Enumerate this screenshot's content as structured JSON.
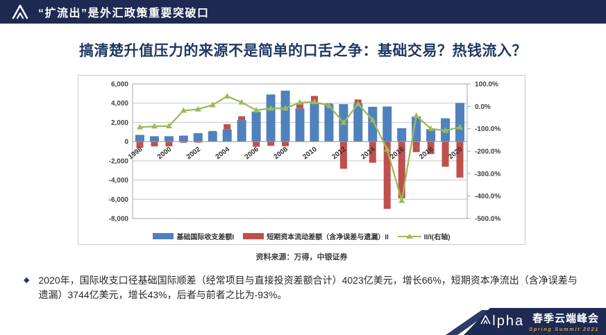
{
  "header": {
    "title": "“扩流出”是外汇政策重要突破口"
  },
  "slide": {
    "title": "搞清楚升值压力的来源不是简单的口舌之争：基础交易？热钱流入？"
  },
  "chart_data": {
    "type": "bar",
    "subtype": "stacked-bars-with-line-on-secondary-axis",
    "categories": [
      1998,
      1999,
      2000,
      2001,
      2002,
      2003,
      2004,
      2005,
      2006,
      2007,
      2008,
      2009,
      2010,
      2011,
      2012,
      2013,
      2014,
      2015,
      2016,
      2017,
      2018,
      2019,
      2020
    ],
    "series": [
      {
        "name": "基础国际收支差额I",
        "type": "bar",
        "color": "#4f81bd",
        "values": [
          700,
          560,
          560,
          620,
          880,
          1050,
          1250,
          2240,
          3130,
          4900,
          5300,
          3450,
          3950,
          3870,
          3900,
          3950,
          3620,
          3650,
          1400,
          2600,
          1300,
          2423,
          4023
        ]
      },
      {
        "name": "短期资本流动差额（含净误差与遗漏）II",
        "type": "bar",
        "color": "#c0504d",
        "values": [
          -650,
          -500,
          -490,
          -120,
          -110,
          60,
          560,
          400,
          -535,
          -440,
          -480,
          600,
          800,
          100,
          -2830,
          430,
          -2200,
          -7000,
          -5900,
          -1100,
          -1300,
          -2618,
          -3744
        ]
      },
      {
        "name": "II/I(右轴)",
        "type": "line",
        "axis": "right",
        "color": "#9bbb59",
        "marker": "triangle",
        "values": [
          -93,
          -89,
          -88,
          -19,
          -13,
          6,
          45,
          18,
          -17,
          -9,
          -9,
          17,
          20,
          3,
          -73,
          11,
          -61,
          -192,
          -421,
          -42,
          -100,
          -108,
          -93
        ]
      }
    ],
    "left_axis": {
      "max": 6000,
      "min": -8000,
      "step": 2000,
      "labels": [
        "6,000",
        "4,000",
        "2,000",
        "0",
        "-2,000",
        "-4,000",
        "-6,000",
        "-8,000"
      ]
    },
    "right_axis": {
      "max": 100,
      "min": -500,
      "step": 100,
      "labels": [
        "100.0%",
        "0.0%",
        "-100.0%",
        "-200.0%",
        "-300.0%",
        "-400.0%",
        "-500.0%"
      ]
    },
    "x_tick_years": [
      1998,
      2000,
      2002,
      2004,
      2006,
      2008,
      2010,
      2012,
      2014,
      2016,
      2018,
      2020
    ],
    "grid": true,
    "legend_position": "bottom"
  },
  "source": {
    "text": "资料来源：万得，中银证券"
  },
  "bullet": {
    "marker": "◆",
    "text": "2020年，国际收支口径基础国际顺差（经常项目与直接投资差额合计）4023亿美元，增长66%，短期资本净流出（含净误差与遗漏）3744亿美元，增长43%，后者与前者之比为-93%。"
  },
  "footer": {
    "brand_rest": "lpha",
    "event": "春季云端峰会",
    "event_sub": "Spring Summit 2021"
  },
  "colors": {
    "navy": "#1e2a52",
    "title_blue": "#1f3864",
    "bar_blue": "#4f81bd",
    "bar_red": "#c0504d",
    "line_green": "#9bbb59",
    "gold": "#d2a43c",
    "grid": "#c6c6c6",
    "frame": "#a6a6a6"
  }
}
